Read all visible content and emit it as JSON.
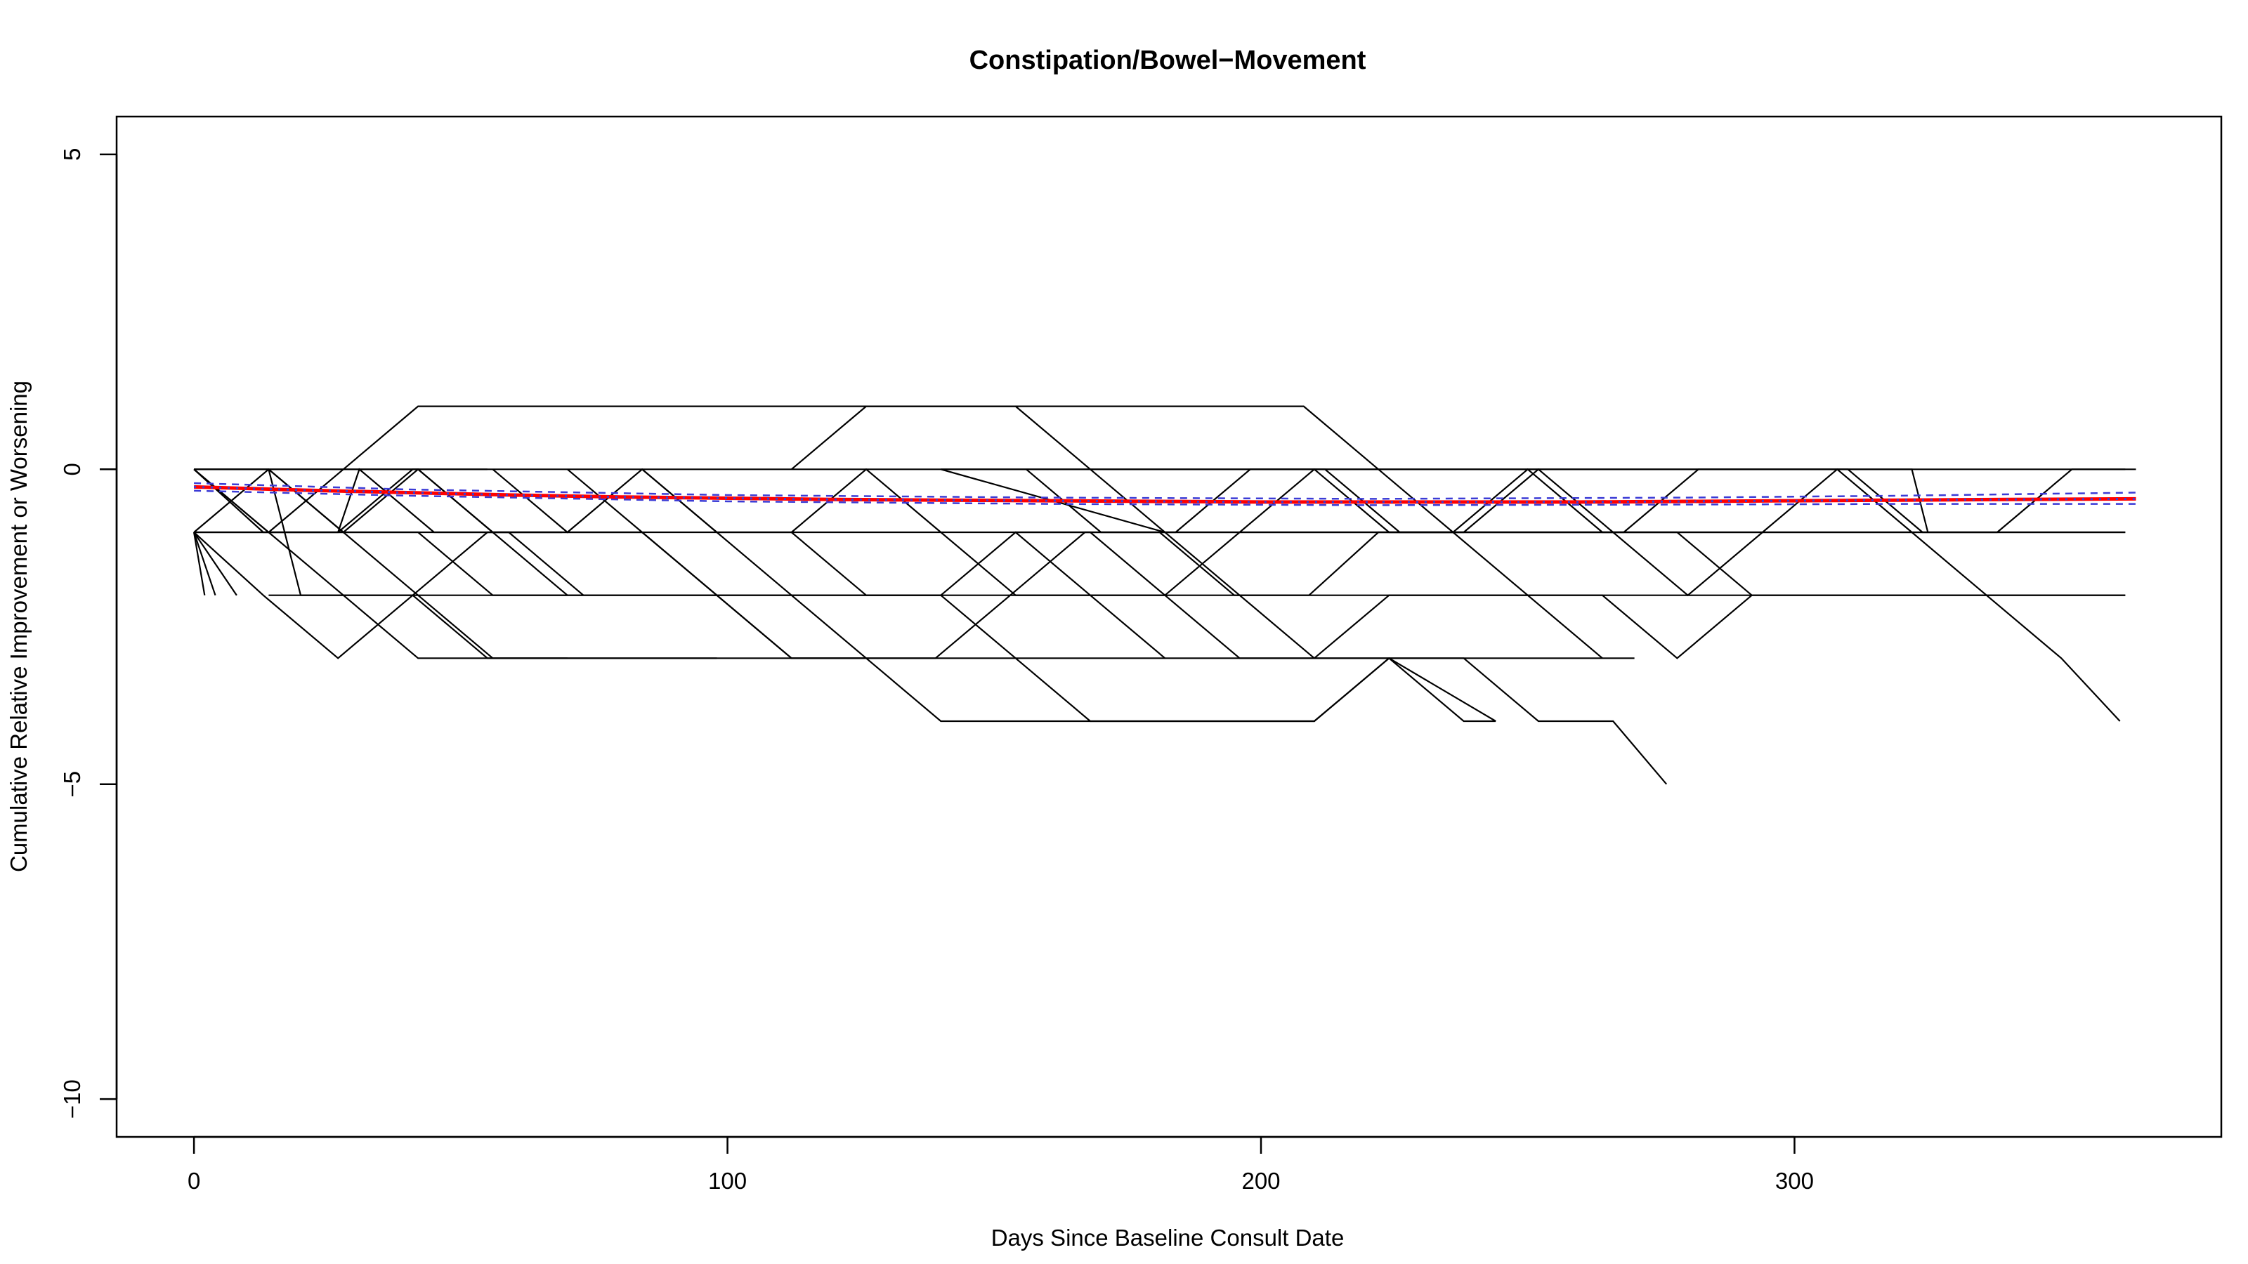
{
  "chart_data": {
    "type": "line",
    "title": "Constipation/Bowel−Movement",
    "xlabel": "Days Since Baseline Consult Date",
    "ylabel": "Cumulative Relative Improvement or Worsening",
    "xlim": [
      -14.5,
      380
    ],
    "ylim": [
      -10.6,
      5.6
    ],
    "xticks": [
      0,
      100,
      200,
      300
    ],
    "yticks": [
      5,
      0,
      -5,
      -10
    ],
    "xtick_labels": [
      "0",
      "100",
      "200",
      "300"
    ],
    "ytick_labels": [
      "5",
      "0",
      "−5",
      "−10"
    ],
    "grid": false,
    "legend": "none",
    "colors": {
      "trajectories": "#000000",
      "mean": "#ff0000",
      "smooth": "#3b3bd6",
      "ci": "#3b3bd6"
    },
    "trajectories": [
      [
        [
          0,
          0
        ],
        [
          14,
          0
        ],
        [
          28,
          -1
        ],
        [
          42,
          -2
        ],
        [
          56,
          -3
        ],
        [
          70,
          -3
        ]
      ],
      [
        [
          0,
          -1
        ],
        [
          2,
          -2
        ]
      ],
      [
        [
          0,
          -1
        ],
        [
          4,
          -2
        ]
      ],
      [
        [
          0,
          -1
        ],
        [
          8,
          -2
        ]
      ],
      [
        [
          0,
          -1
        ],
        [
          13,
          -2
        ],
        [
          27,
          -3
        ],
        [
          41,
          -2
        ],
        [
          55,
          -1
        ],
        [
          69,
          -1
        ]
      ],
      [
        [
          0,
          0
        ],
        [
          13,
          -1
        ],
        [
          27,
          -1
        ],
        [
          41,
          0
        ],
        [
          55,
          0
        ]
      ],
      [
        [
          0,
          -1
        ],
        [
          14,
          0
        ],
        [
          28,
          0
        ],
        [
          42,
          1
        ],
        [
          70,
          1
        ],
        [
          100,
          1
        ],
        [
          150,
          1
        ],
        [
          208,
          1
        ],
        [
          222,
          0
        ],
        [
          236,
          -1
        ],
        [
          250,
          -2
        ],
        [
          264,
          -3
        ]
      ],
      [
        [
          0,
          0
        ],
        [
          14,
          -1
        ],
        [
          28,
          -1
        ],
        [
          42,
          -1
        ],
        [
          56,
          -2
        ],
        [
          70,
          -2
        ],
        [
          84,
          -2
        ],
        [
          98,
          -2
        ],
        [
          112,
          -2
        ],
        [
          126,
          -2
        ],
        [
          140,
          -2
        ],
        [
          154,
          -3
        ],
        [
          168,
          -4
        ],
        [
          182,
          -4
        ],
        [
          196,
          -4
        ],
        [
          210,
          -4
        ],
        [
          224,
          -3
        ],
        [
          238,
          -3
        ],
        [
          252,
          -4
        ],
        [
          266,
          -4
        ],
        [
          276,
          -5
        ]
      ],
      [
        [
          0,
          0
        ],
        [
          14,
          -1
        ],
        [
          28,
          0
        ],
        [
          42,
          0
        ],
        [
          56,
          -1
        ],
        [
          70,
          -2
        ]
      ],
      [
        [
          0,
          -1
        ],
        [
          14,
          -1
        ],
        [
          28,
          -2
        ],
        [
          42,
          -3
        ],
        [
          56,
          -3
        ],
        [
          70,
          -3
        ],
        [
          98,
          -3
        ]
      ],
      [
        [
          0,
          0
        ],
        [
          14,
          0
        ],
        [
          28,
          -1
        ],
        [
          42,
          0
        ],
        [
          56,
          -1
        ],
        [
          70,
          -1
        ],
        [
          84,
          -1
        ],
        [
          98,
          -2
        ],
        [
          112,
          -3
        ],
        [
          126,
          -3
        ]
      ],
      [
        [
          14,
          0
        ],
        [
          20,
          -2
        ],
        [
          41,
          -2
        ],
        [
          55,
          -3
        ],
        [
          70,
          -3
        ],
        [
          100,
          -3
        ],
        [
          125,
          -3
        ],
        [
          139,
          -3
        ],
        [
          153,
          -2
        ],
        [
          167,
          -1
        ],
        [
          181,
          -1
        ],
        [
          195,
          -2
        ],
        [
          209,
          -2
        ],
        [
          222,
          -1
        ],
        [
          236,
          -1
        ],
        [
          250,
          0
        ],
        [
          264,
          -1
        ],
        [
          278,
          -1
        ],
        [
          292,
          -2
        ],
        [
          320,
          -2
        ],
        [
          362,
          -2
        ]
      ],
      [
        [
          27,
          -1
        ],
        [
          31,
          0
        ],
        [
          45,
          -1
        ],
        [
          59,
          -1
        ],
        [
          73,
          -2
        ]
      ],
      [
        [
          56,
          0
        ],
        [
          70,
          -1
        ],
        [
          84,
          0
        ],
        [
          98,
          -1
        ],
        [
          112,
          -1
        ],
        [
          126,
          0
        ],
        [
          140,
          -1
        ],
        [
          154,
          -2
        ],
        [
          168,
          -2
        ],
        [
          182,
          -3
        ],
        [
          196,
          -3
        ],
        [
          210,
          -3
        ],
        [
          224,
          -3
        ],
        [
          238,
          -3
        ],
        [
          270,
          -3
        ]
      ],
      [
        [
          70,
          0
        ],
        [
          84,
          -1
        ],
        [
          98,
          -2
        ],
        [
          112,
          -3
        ],
        [
          126,
          -3
        ],
        [
          140,
          -3
        ],
        [
          154,
          -3
        ],
        [
          182,
          -3
        ]
      ],
      [
        [
          84,
          0
        ],
        [
          98,
          -1
        ],
        [
          112,
          -2
        ],
        [
          126,
          -3
        ],
        [
          140,
          -4
        ],
        [
          154,
          -4
        ],
        [
          168,
          -4
        ],
        [
          182,
          -4
        ],
        [
          196,
          -4
        ],
        [
          210,
          -4
        ],
        [
          224,
          -3
        ],
        [
          244,
          -4
        ]
      ],
      [
        [
          112,
          0
        ],
        [
          126,
          1
        ],
        [
          140,
          1
        ],
        [
          154,
          1
        ],
        [
          168,
          0
        ],
        [
          182,
          -1
        ],
        [
          196,
          -2
        ],
        [
          210,
          -3
        ],
        [
          224,
          -3
        ],
        [
          238,
          -4
        ],
        [
          244,
          -4
        ]
      ],
      [
        [
          112,
          -1
        ],
        [
          126,
          -2
        ],
        [
          140,
          -2
        ],
        [
          154,
          -1
        ],
        [
          168,
          -2
        ],
        [
          182,
          -2
        ],
        [
          196,
          -1
        ],
        [
          210,
          0
        ],
        [
          224,
          -1
        ],
        [
          238,
          -1
        ],
        [
          252,
          0
        ],
        [
          266,
          -1
        ],
        [
          280,
          -2
        ],
        [
          294,
          -1
        ],
        [
          308,
          0
        ],
        [
          322,
          -1
        ],
        [
          336,
          -2
        ],
        [
          350,
          -3
        ],
        [
          361,
          -4
        ]
      ],
      [
        [
          140,
          0
        ],
        [
          182,
          -1
        ],
        [
          210,
          -1
        ],
        [
          250,
          -1
        ],
        [
          300,
          -1
        ],
        [
          362,
          -1
        ]
      ],
      [
        [
          140,
          0
        ],
        [
          165,
          0
        ],
        [
          250,
          0
        ],
        [
          300,
          0
        ],
        [
          322,
          0
        ],
        [
          325,
          -1
        ]
      ],
      [
        [
          154,
          -1
        ],
        [
          168,
          -1
        ],
        [
          182,
          -2
        ],
        [
          196,
          -3
        ],
        [
          210,
          -3
        ],
        [
          224,
          -2
        ],
        [
          238,
          -2
        ],
        [
          252,
          -2
        ],
        [
          264,
          -2
        ],
        [
          278,
          -3
        ],
        [
          292,
          -2
        ]
      ],
      [
        [
          156,
          0
        ],
        [
          170,
          -1
        ],
        [
          184,
          -1
        ],
        [
          198,
          0
        ],
        [
          212,
          0
        ],
        [
          226,
          -1
        ],
        [
          240,
          -1
        ],
        [
          254,
          -1
        ],
        [
          268,
          -1
        ],
        [
          282,
          0
        ],
        [
          296,
          0
        ],
        [
          310,
          0
        ],
        [
          324,
          -1
        ],
        [
          338,
          -1
        ],
        [
          352,
          0
        ],
        [
          362,
          0
        ]
      ],
      [
        [
          0,
          -1
        ],
        [
          362,
          -1
        ]
      ],
      [
        [
          0,
          0
        ],
        [
          364,
          0
        ]
      ],
      [
        [
          14,
          -2
        ],
        [
          362,
          -2
        ]
      ]
    ],
    "mean_line": {
      "x": [
        0,
        20,
        40,
        60,
        80,
        100,
        120,
        140,
        160,
        180,
        200,
        220,
        240,
        260,
        280,
        300,
        320,
        340,
        364
      ],
      "y": [
        -0.28,
        -0.33,
        -0.37,
        -0.41,
        -0.44,
        -0.46,
        -0.48,
        -0.49,
        -0.5,
        -0.51,
        -0.52,
        -0.52,
        -0.52,
        -0.52,
        -0.51,
        -0.5,
        -0.49,
        -0.48,
        -0.47
      ]
    },
    "ci_upper": {
      "x": [
        0,
        40,
        100,
        160,
        220,
        280,
        320,
        364
      ],
      "y": [
        -0.22,
        -0.32,
        -0.41,
        -0.45,
        -0.47,
        -0.45,
        -0.42,
        -0.37
      ]
    },
    "ci_lower": {
      "x": [
        0,
        40,
        100,
        160,
        220,
        280,
        320,
        364
      ],
      "y": [
        -0.34,
        -0.42,
        -0.51,
        -0.55,
        -0.57,
        -0.56,
        -0.55,
        -0.55
      ]
    }
  }
}
